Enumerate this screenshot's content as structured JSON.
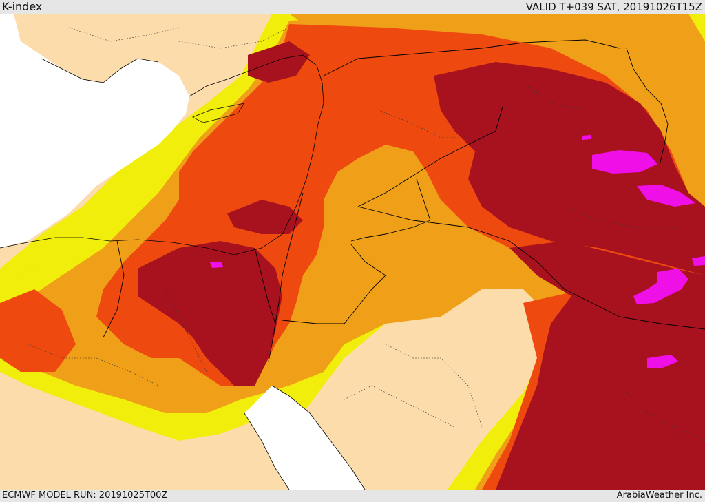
{
  "header": {
    "product": "K-index",
    "valid_time": "VALID T+039 SAT, 20191026T15Z"
  },
  "footer": {
    "model_run": "ECMWF MODEL RUN: 20191025T00Z",
    "credit": "ArabiaWeather Inc."
  },
  "map": {
    "region": "Eastern Mediterranean and Middle East",
    "field": "K-index",
    "palette": {
      "land": "#fcdcaa",
      "sea": "#ffffff",
      "yellow": "#f0ee0a",
      "orange": "#f0a018",
      "red_orange": "#ee4a10",
      "dark_red": "#a8121e",
      "magenta": "#ee10e6"
    }
  }
}
